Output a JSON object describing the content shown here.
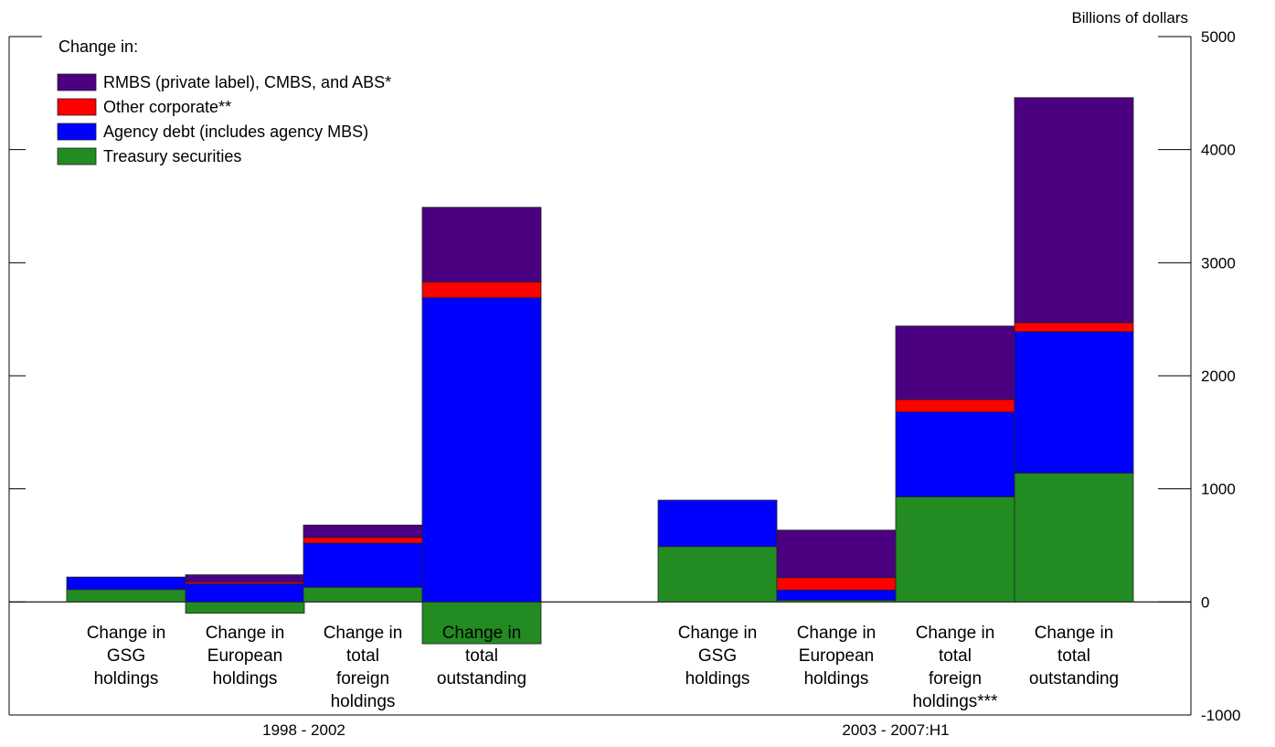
{
  "chart_data": {
    "type": "bar",
    "stacked": true,
    "unit_label": "Billions of dollars",
    "ylim": [
      -1000,
      5000
    ],
    "yticks": [
      "-1000",
      "0",
      "1000",
      "2000",
      "3000",
      "4000",
      "5000"
    ],
    "y_axis_side": "right",
    "legend_title": "Change in:",
    "legend_placement": "top-left",
    "grid": false,
    "categories": [
      "Change in GSG holdings",
      "Change in European holdings",
      "Change in total foreign holdings",
      "Change in total outstanding",
      "Change in GSG holdings",
      "Change in European holdings",
      "Change in total foreign holdings***",
      "Change in total outstanding"
    ],
    "category_label_lines": [
      [
        "Change in",
        "GSG",
        "holdings"
      ],
      [
        "Change in",
        "European",
        "holdings"
      ],
      [
        "Change in",
        "total",
        "foreign",
        "holdings"
      ],
      [
        "Change in",
        "total",
        "outstanding"
      ],
      [
        "Change in",
        "GSG",
        "holdings"
      ],
      [
        "Change in",
        "European",
        "holdings"
      ],
      [
        "Change in",
        "total",
        "foreign",
        "holdings***"
      ],
      [
        "Change in",
        "total",
        "outstanding"
      ]
    ],
    "groups": [
      {
        "label": "1998 - 2002",
        "categories": [
          0,
          1,
          2,
          3
        ]
      },
      {
        "label": "2003 - 2007:H1",
        "categories": [
          4,
          5,
          6,
          7
        ]
      }
    ],
    "series": [
      {
        "name": "Treasury securities",
        "color": "#228B22",
        "values": [
          110,
          -100,
          130,
          -370,
          490,
          15,
          930,
          1140
        ]
      },
      {
        "name": "Agency debt (includes agency MBS)",
        "color": "#0000FF",
        "values": [
          110,
          160,
          390,
          2690,
          410,
          90,
          750,
          1250
        ]
      },
      {
        "name": "Other corporate**",
        "color": "#FF0000",
        "values": [
          0,
          15,
          50,
          140,
          0,
          110,
          110,
          80
        ]
      },
      {
        "name": "RMBS (private label), CMBS, and ABS*",
        "color": "#4B0082",
        "values": [
          0,
          65,
          110,
          660,
          0,
          420,
          650,
          1990
        ]
      }
    ],
    "legend_order": [
      3,
      2,
      1,
      0
    ]
  }
}
